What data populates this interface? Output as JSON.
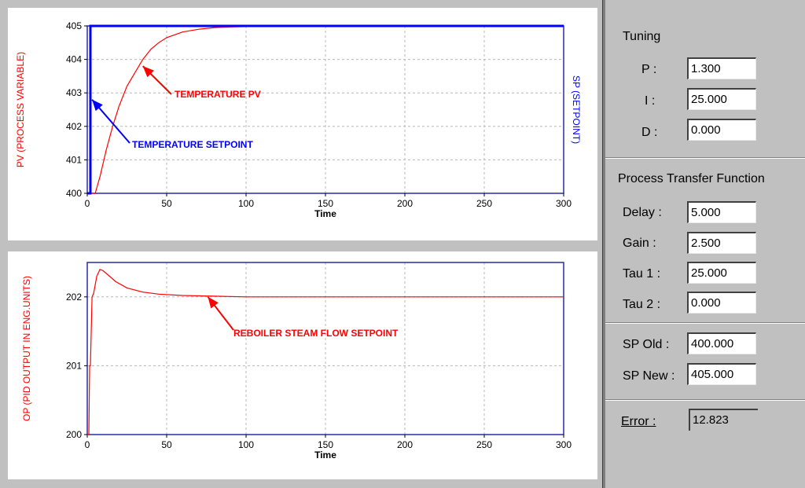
{
  "colors": {
    "pv": "#ff0000",
    "sp": "#0000ff",
    "op": "#ff0000",
    "frame": "#2a2aa8",
    "grid": "#b8b8b8"
  },
  "tuning": {
    "heading": "Tuning",
    "p_label": "P :",
    "p_value": "1.300",
    "i_label": "I :",
    "i_value": "25.000",
    "d_label": "D :",
    "d_value": "0.000"
  },
  "process": {
    "heading": "Process Transfer Function",
    "delay_label": "Delay :",
    "delay_value": "5.000",
    "gain_label": "Gain :",
    "gain_value": "2.500",
    "tau1_label": "Tau 1 :",
    "tau1_value": "25.000",
    "tau2_label": "Tau 2 :",
    "tau2_value": "0.000"
  },
  "setpoint": {
    "old_label": "SP Old :",
    "old_value": "400.000",
    "new_label": "SP New :",
    "new_value": "405.000"
  },
  "error": {
    "label": "Error :",
    "value": "12.823"
  },
  "chart_data": [
    {
      "type": "line",
      "xlabel": "Time",
      "ylabel": "PV (PROCESS VARIABLE)",
      "ylabel_right": "SP (SETPOINT)",
      "xlim": [
        0,
        300
      ],
      "ylim": [
        400,
        405
      ],
      "xticks": [
        0,
        50,
        100,
        150,
        200,
        250,
        300
      ],
      "yticks": [
        400,
        401,
        402,
        403,
        404,
        405
      ],
      "grid": true,
      "series": [
        {
          "color": "#ff0000",
          "x": [
            0,
            5,
            8,
            12,
            16,
            20,
            25,
            30,
            35,
            40,
            45,
            50,
            60,
            70,
            80,
            90,
            100,
            110,
            118
          ],
          "y": [
            400,
            400,
            400.5,
            401.3,
            402.0,
            402.6,
            403.2,
            403.6,
            404.0,
            404.3,
            404.5,
            404.65,
            404.82,
            404.9,
            404.95,
            404.97,
            404.98,
            404.99,
            405
          ]
        },
        {
          "color": "#0000ff",
          "x": [
            0,
            2,
            2,
            300
          ],
          "y": [
            400,
            400,
            405,
            405
          ]
        }
      ],
      "annotations": [
        {
          "text": "TEMPERATURE PV",
          "color": "#ff0000",
          "point": [
            35,
            403.8
          ]
        },
        {
          "text": "TEMPERATURE SETPOINT",
          "color": "#0000ff",
          "point": [
            3,
            402.8
          ]
        }
      ]
    },
    {
      "type": "line",
      "xlabel": "Time",
      "ylabel": "OP (PID OUTPUT IN ENG.UNITS)",
      "xlim": [
        0,
        300
      ],
      "ylim": [
        200,
        202.5
      ],
      "xticks": [
        0,
        50,
        100,
        150,
        200,
        250,
        300
      ],
      "yticks": [
        200,
        201,
        202
      ],
      "grid": true,
      "series": [
        {
          "color": "#ff0000",
          "x": [
            0,
            1,
            1.5,
            2,
            3,
            4,
            6,
            8,
            10,
            14,
            18,
            25,
            35,
            45,
            60,
            80,
            100,
            300
          ],
          "y": [
            200,
            200,
            201,
            201,
            202,
            202.05,
            202.3,
            202.4,
            202.38,
            202.3,
            202.22,
            202.13,
            202.07,
            202.04,
            202.02,
            202.01,
            202.0,
            202.0
          ]
        }
      ],
      "annotations": [
        {
          "text": "REBOILER STEAM FLOW SETPOINT",
          "color": "#ff0000",
          "point": [
            76,
            202.0
          ]
        }
      ]
    }
  ]
}
